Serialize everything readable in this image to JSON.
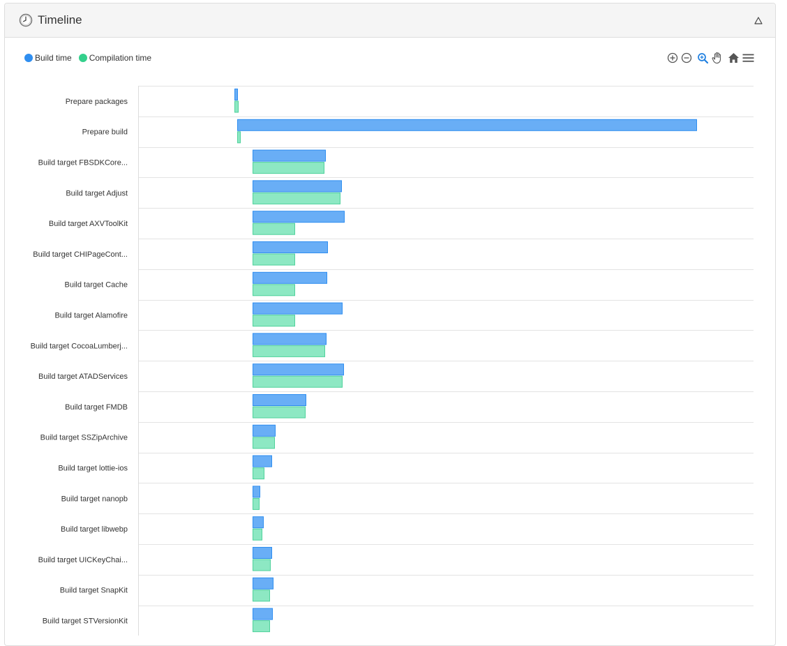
{
  "panel": {
    "title": "Timeline",
    "clock_icon": "clock-icon",
    "collapse_icon": "triangle-up-icon"
  },
  "legend": [
    {
      "label": "Build time",
      "color": "#2f8ef0"
    },
    {
      "label": "Compilation time",
      "color": "#34d08c"
    }
  ],
  "toolbar": [
    {
      "name": "zoom-in-icon",
      "color": "#555555"
    },
    {
      "name": "zoom-out-icon",
      "color": "#555555"
    },
    {
      "name": "selection-zoom-icon",
      "color": "#1e7fe0"
    },
    {
      "name": "pan-hand-icon",
      "color": "#555555"
    },
    {
      "name": "reset-zoom-home-icon",
      "color": "#555555"
    },
    {
      "name": "menu-icon",
      "color": "#555555"
    }
  ],
  "chart_data": {
    "type": "bar",
    "orientation": "horizontal-range",
    "categories": [
      "Prepare packages",
      "Prepare build",
      "Build target FBSDKCore...",
      "Build target Adjust",
      "Build target AXVToolKit",
      "Build target CHIPageCont...",
      "Build target Cache",
      "Build target Alamofire",
      "Build target CocoaLumberj...",
      "Build target ATADServices",
      "Build target FMDB",
      "Build target SSZipArchive",
      "Build target lottie-ios",
      "Build target nanopb",
      "Build target libwebp",
      "Build target UICKeyChai...",
      "Build target SnapKit",
      "Build target STVersionKit"
    ],
    "series": [
      {
        "name": "Build time",
        "color": "#69aef6",
        "stroke": "#2f8ef0",
        "ranges": [
          [
            138,
            142
          ],
          [
            142,
            800
          ],
          [
            164,
            268
          ],
          [
            164,
            291
          ],
          [
            164,
            295
          ],
          [
            164,
            271
          ],
          [
            164,
            270
          ],
          [
            164,
            292
          ],
          [
            164,
            269
          ],
          [
            164,
            294
          ],
          [
            164,
            240
          ],
          [
            164,
            196
          ],
          [
            164,
            191
          ],
          [
            164,
            174
          ],
          [
            164,
            179
          ],
          [
            164,
            191
          ],
          [
            164,
            193
          ],
          [
            164,
            192
          ]
        ]
      },
      {
        "name": "Compilation time",
        "color": "#8de8c3",
        "stroke": "#4fd19b",
        "ranges": [
          [
            138,
            143
          ],
          [
            142,
            146
          ],
          [
            164,
            266
          ],
          [
            164,
            289
          ],
          [
            164,
            224
          ],
          [
            164,
            224
          ],
          [
            164,
            224
          ],
          [
            164,
            224
          ],
          [
            164,
            267
          ],
          [
            164,
            292
          ],
          [
            164,
            239
          ],
          [
            164,
            195
          ],
          [
            164,
            180
          ],
          [
            164,
            173
          ],
          [
            164,
            177
          ],
          [
            164,
            189
          ],
          [
            164,
            188
          ],
          [
            164,
            188
          ]
        ]
      }
    ],
    "xlim": [
      0,
      882
    ],
    "legend_position": "top-left",
    "grid": "horizontal"
  }
}
